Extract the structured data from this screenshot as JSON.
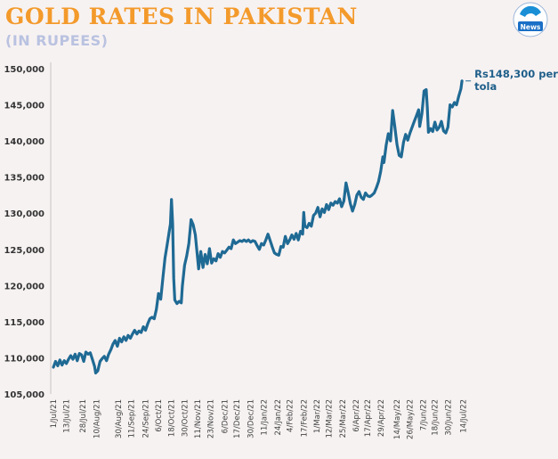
{
  "header": {
    "title": "GOLD RATES IN PAKISTAN",
    "subtitle": "(IN RUPEES)",
    "logo_text": "News",
    "colors": {
      "title": "#f39a2b",
      "subtitle": "#b9c2e0",
      "line": "#1f6a94",
      "background": "#f7f2f2"
    }
  },
  "chart_data": {
    "type": "line",
    "ylim": [
      105000,
      150000
    ],
    "y_ticks": [
      "105,000",
      "110,000",
      "115,000",
      "120,000",
      "125,000",
      "130,000",
      "135,000",
      "140,000",
      "145,000",
      "150,000"
    ],
    "x_range": [
      "2021-07-01",
      "2022-07-17"
    ],
    "x_ticks": [
      {
        "label": "1/Jul/21",
        "date": "2021-07-01"
      },
      {
        "label": "13/Jul/21",
        "date": "2021-07-13"
      },
      {
        "label": "28/Jul/21",
        "date": "2021-07-28"
      },
      {
        "label": "10/Aug/21",
        "date": "2021-08-10"
      },
      {
        "label": "30/Aug/21",
        "date": "2021-08-30"
      },
      {
        "label": "11/Sep/21",
        "date": "2021-09-11"
      },
      {
        "label": "24/Sep/21",
        "date": "2021-09-24"
      },
      {
        "label": "6/Oct/21",
        "date": "2021-10-06"
      },
      {
        "label": "18/Oct/21",
        "date": "2021-10-18"
      },
      {
        "label": "30/Oct/21",
        "date": "2021-10-30"
      },
      {
        "label": "11/Nov/21",
        "date": "2021-11-11"
      },
      {
        "label": "23/Nov/21",
        "date": "2021-11-23"
      },
      {
        "label": "6/Dec/21",
        "date": "2021-12-06"
      },
      {
        "label": "17/Dec/21",
        "date": "2021-12-17"
      },
      {
        "label": "30/Dec/21",
        "date": "2021-12-30"
      },
      {
        "label": "11/Jan/22",
        "date": "2022-01-11"
      },
      {
        "label": "24/Jan/22",
        "date": "2022-01-24"
      },
      {
        "label": "4/Feb/22",
        "date": "2022-02-04"
      },
      {
        "label": "17/Feb/22",
        "date": "2022-02-17"
      },
      {
        "label": "1/Mar/22",
        "date": "2022-03-01"
      },
      {
        "label": "12/Mar/22",
        "date": "2022-03-12"
      },
      {
        "label": "25/Mar/22",
        "date": "2022-03-25"
      },
      {
        "label": "6/Apr/22",
        "date": "2022-04-06"
      },
      {
        "label": "17/Apr/22",
        "date": "2022-04-17"
      },
      {
        "label": "29/Apr/22",
        "date": "2022-04-29"
      },
      {
        "label": "14/May/22",
        "date": "2022-05-14"
      },
      {
        "label": "26/May/22",
        "date": "2022-05-26"
      },
      {
        "label": "7/Jun/22",
        "date": "2022-06-07"
      },
      {
        "label": "18/Jun/22",
        "date": "2022-06-18"
      },
      {
        "label": "30/Jun/22",
        "date": "2022-06-30"
      },
      {
        "label": "14/Jul/22",
        "date": "2022-07-14"
      }
    ],
    "series": [
      {
        "points": [
          [
            "2021-07-01",
            108700
          ],
          [
            "2021-07-03",
            109500
          ],
          [
            "2021-07-05",
            108900
          ],
          [
            "2021-07-07",
            109700
          ],
          [
            "2021-07-09",
            109000
          ],
          [
            "2021-07-11",
            109600
          ],
          [
            "2021-07-13",
            109200
          ],
          [
            "2021-07-15",
            109800
          ],
          [
            "2021-07-17",
            110300
          ],
          [
            "2021-07-19",
            109800
          ],
          [
            "2021-07-21",
            110500
          ],
          [
            "2021-07-23",
            109600
          ],
          [
            "2021-07-25",
            110600
          ],
          [
            "2021-07-27",
            110400
          ],
          [
            "2021-07-29",
            109500
          ],
          [
            "2021-07-31",
            110800
          ],
          [
            "2021-08-02",
            110500
          ],
          [
            "2021-08-04",
            110700
          ],
          [
            "2021-08-06",
            109800
          ],
          [
            "2021-08-08",
            108800
          ],
          [
            "2021-08-09",
            107900
          ],
          [
            "2021-08-11",
            108200
          ],
          [
            "2021-08-13",
            109500
          ],
          [
            "2021-08-15",
            109900
          ],
          [
            "2021-08-17",
            110200
          ],
          [
            "2021-08-19",
            109600
          ],
          [
            "2021-08-21",
            110500
          ],
          [
            "2021-08-23",
            111100
          ],
          [
            "2021-08-25",
            111900
          ],
          [
            "2021-08-27",
            112400
          ],
          [
            "2021-08-29",
            111600
          ],
          [
            "2021-08-31",
            112700
          ],
          [
            "2021-09-02",
            112200
          ],
          [
            "2021-09-04",
            112900
          ],
          [
            "2021-09-06",
            112400
          ],
          [
            "2021-09-08",
            113100
          ],
          [
            "2021-09-10",
            112700
          ],
          [
            "2021-09-12",
            113300
          ],
          [
            "2021-09-14",
            113800
          ],
          [
            "2021-09-16",
            113300
          ],
          [
            "2021-09-18",
            113700
          ],
          [
            "2021-09-20",
            113500
          ],
          [
            "2021-09-22",
            114300
          ],
          [
            "2021-09-24",
            113800
          ],
          [
            "2021-09-26",
            114700
          ],
          [
            "2021-09-28",
            115400
          ],
          [
            "2021-09-30",
            115600
          ],
          [
            "2021-10-02",
            115400
          ],
          [
            "2021-10-04",
            116700
          ],
          [
            "2021-10-06",
            118900
          ],
          [
            "2021-10-08",
            118100
          ],
          [
            "2021-10-10",
            121000
          ],
          [
            "2021-10-12",
            123800
          ],
          [
            "2021-10-14",
            125700
          ],
          [
            "2021-10-16",
            127600
          ],
          [
            "2021-10-17",
            128500
          ],
          [
            "2021-10-18",
            131900
          ],
          [
            "2021-10-19",
            128500
          ],
          [
            "2021-10-20",
            121000
          ],
          [
            "2021-10-21",
            118000
          ],
          [
            "2021-10-23",
            117500
          ],
          [
            "2021-10-25",
            117800
          ],
          [
            "2021-10-27",
            117600
          ],
          [
            "2021-10-28",
            119900
          ],
          [
            "2021-10-30",
            122800
          ],
          [
            "2021-11-01",
            124100
          ],
          [
            "2021-11-03",
            125800
          ],
          [
            "2021-11-05",
            129100
          ],
          [
            "2021-11-07",
            128400
          ],
          [
            "2021-11-09",
            127000
          ],
          [
            "2021-11-11",
            123800
          ],
          [
            "2021-11-12",
            122300
          ],
          [
            "2021-11-14",
            124700
          ],
          [
            "2021-11-16",
            122500
          ],
          [
            "2021-11-18",
            124300
          ],
          [
            "2021-11-20",
            123000
          ],
          [
            "2021-11-22",
            125100
          ],
          [
            "2021-11-24",
            123100
          ],
          [
            "2021-11-26",
            123700
          ],
          [
            "2021-11-28",
            123400
          ],
          [
            "2021-11-30",
            124400
          ],
          [
            "2021-12-02",
            123900
          ],
          [
            "2021-12-04",
            124700
          ],
          [
            "2021-12-06",
            124500
          ],
          [
            "2021-12-08",
            124900
          ],
          [
            "2021-12-10",
            125300
          ],
          [
            "2021-12-12",
            125100
          ],
          [
            "2021-12-14",
            126300
          ],
          [
            "2021-12-16",
            125800
          ],
          [
            "2021-12-18",
            126000
          ],
          [
            "2021-12-20",
            126200
          ],
          [
            "2021-12-22",
            126100
          ],
          [
            "2021-12-24",
            126300
          ],
          [
            "2021-12-26",
            126100
          ],
          [
            "2021-12-28",
            126300
          ],
          [
            "2021-12-30",
            126000
          ],
          [
            "2022-01-01",
            126200
          ],
          [
            "2022-01-03",
            126100
          ],
          [
            "2022-01-05",
            125500
          ],
          [
            "2022-01-07",
            125000
          ],
          [
            "2022-01-09",
            125800
          ],
          [
            "2022-01-11",
            125600
          ],
          [
            "2022-01-13",
            126300
          ],
          [
            "2022-01-15",
            127100
          ],
          [
            "2022-01-17",
            126200
          ],
          [
            "2022-01-19",
            125300
          ],
          [
            "2022-01-21",
            124500
          ],
          [
            "2022-01-23",
            124300
          ],
          [
            "2022-01-25",
            124200
          ],
          [
            "2022-01-27",
            125400
          ],
          [
            "2022-01-29",
            125300
          ],
          [
            "2022-01-31",
            126800
          ],
          [
            "2022-02-02",
            125800
          ],
          [
            "2022-02-04",
            126300
          ],
          [
            "2022-02-06",
            127000
          ],
          [
            "2022-02-08",
            126400
          ],
          [
            "2022-02-10",
            127200
          ],
          [
            "2022-02-12",
            126300
          ],
          [
            "2022-02-14",
            127500
          ],
          [
            "2022-02-16",
            127100
          ],
          [
            "2022-02-17",
            130100
          ],
          [
            "2022-02-18",
            128200
          ],
          [
            "2022-02-20",
            128000
          ],
          [
            "2022-02-22",
            128600
          ],
          [
            "2022-02-24",
            128200
          ],
          [
            "2022-02-26",
            129700
          ],
          [
            "2022-02-28",
            130000
          ],
          [
            "2022-03-02",
            130800
          ],
          [
            "2022-03-04",
            129500
          ],
          [
            "2022-03-06",
            130600
          ],
          [
            "2022-03-08",
            130100
          ],
          [
            "2022-03-10",
            131200
          ],
          [
            "2022-03-12",
            130500
          ],
          [
            "2022-03-14",
            131400
          ],
          [
            "2022-03-16",
            131100
          ],
          [
            "2022-03-18",
            131600
          ],
          [
            "2022-03-20",
            131400
          ],
          [
            "2022-03-22",
            132000
          ],
          [
            "2022-03-24",
            130900
          ],
          [
            "2022-03-26",
            131700
          ],
          [
            "2022-03-28",
            134200
          ],
          [
            "2022-03-30",
            132800
          ],
          [
            "2022-04-01",
            131300
          ],
          [
            "2022-04-03",
            130300
          ],
          [
            "2022-04-05",
            131200
          ],
          [
            "2022-04-07",
            132500
          ],
          [
            "2022-04-09",
            133000
          ],
          [
            "2022-04-11",
            132200
          ],
          [
            "2022-04-13",
            131900
          ],
          [
            "2022-04-15",
            132800
          ],
          [
            "2022-04-17",
            132400
          ],
          [
            "2022-04-19",
            132300
          ],
          [
            "2022-04-21",
            132500
          ],
          [
            "2022-04-23",
            132800
          ],
          [
            "2022-04-25",
            133500
          ],
          [
            "2022-04-27",
            134400
          ],
          [
            "2022-04-29",
            135800
          ],
          [
            "2022-05-01",
            137800
          ],
          [
            "2022-05-02",
            137000
          ],
          [
            "2022-05-04",
            139400
          ],
          [
            "2022-05-06",
            141000
          ],
          [
            "2022-05-08",
            140000
          ],
          [
            "2022-05-10",
            144200
          ],
          [
            "2022-05-12",
            142000
          ],
          [
            "2022-05-14",
            139500
          ],
          [
            "2022-05-16",
            138000
          ],
          [
            "2022-05-18",
            137800
          ],
          [
            "2022-05-20",
            139800
          ],
          [
            "2022-05-22",
            140900
          ],
          [
            "2022-05-24",
            140100
          ],
          [
            "2022-05-26",
            141100
          ],
          [
            "2022-05-28",
            141900
          ],
          [
            "2022-05-30",
            142700
          ],
          [
            "2022-06-01",
            143500
          ],
          [
            "2022-06-03",
            144300
          ],
          [
            "2022-06-04",
            142000
          ],
          [
            "2022-06-06",
            143800
          ],
          [
            "2022-06-08",
            146900
          ],
          [
            "2022-06-10",
            147100
          ],
          [
            "2022-06-11",
            144500
          ],
          [
            "2022-06-12",
            141200
          ],
          [
            "2022-06-14",
            141700
          ],
          [
            "2022-06-16",
            141300
          ],
          [
            "2022-06-18",
            142600
          ],
          [
            "2022-06-20",
            141500
          ],
          [
            "2022-06-22",
            141900
          ],
          [
            "2022-06-24",
            142700
          ],
          [
            "2022-06-26",
            141400
          ],
          [
            "2022-06-28",
            141100
          ],
          [
            "2022-06-30",
            141900
          ],
          [
            "2022-07-02",
            145000
          ],
          [
            "2022-07-04",
            144700
          ],
          [
            "2022-07-06",
            145300
          ],
          [
            "2022-07-08",
            145000
          ],
          [
            "2022-07-10",
            146200
          ],
          [
            "2022-07-12",
            147200
          ],
          [
            "2022-07-13",
            148300
          ]
        ]
      }
    ],
    "annotation": {
      "line1": "Rs148,300 per",
      "line2": "tola"
    }
  }
}
